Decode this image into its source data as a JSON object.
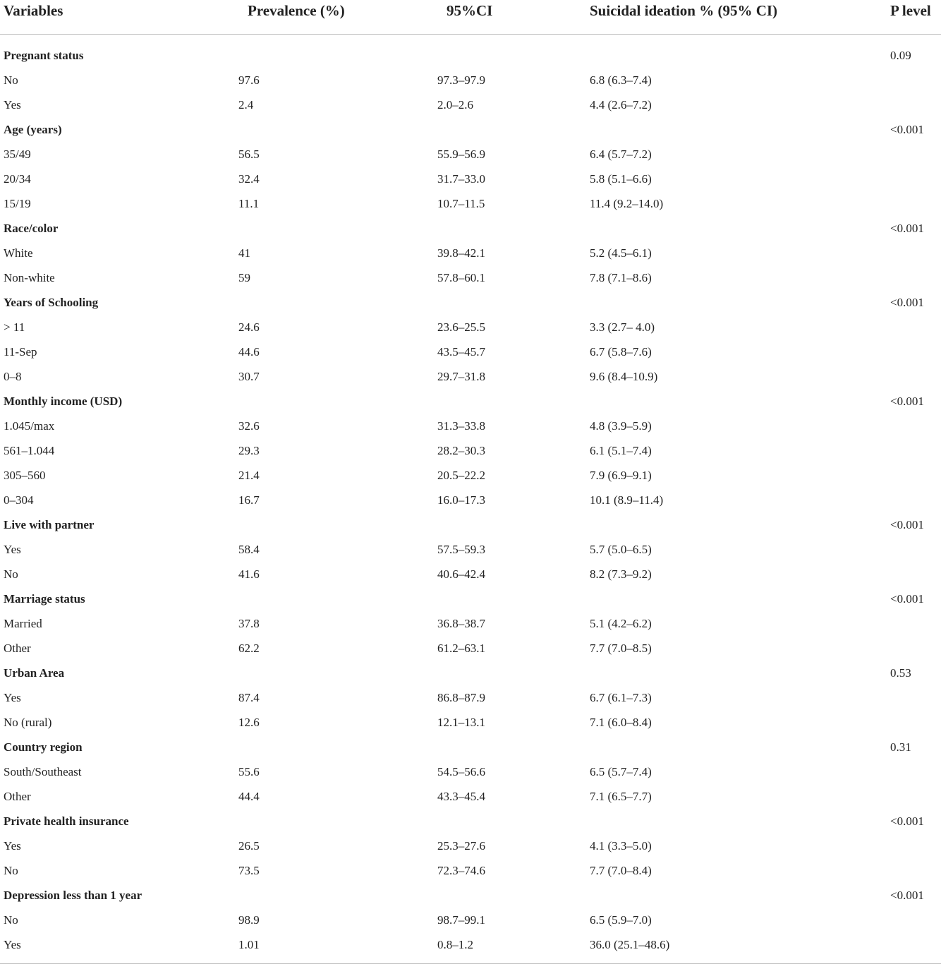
{
  "headers": [
    "Variables",
    "Prevalence (%)",
    "95%CI",
    "Suicidal ideation % (95% CI)",
    "P level"
  ],
  "rows": [
    {
      "type": "group",
      "cells": [
        "Pregnant status",
        "",
        "",
        "",
        "0.09"
      ]
    },
    {
      "type": "item",
      "cells": [
        "No",
        "97.6",
        "97.3–97.9",
        "6.8 (6.3–7.4)",
        ""
      ]
    },
    {
      "type": "item",
      "cells": [
        "Yes",
        "2.4",
        "2.0–2.6",
        "4.4 (2.6–7.2)",
        ""
      ]
    },
    {
      "type": "group",
      "cells": [
        "Age (years)",
        "",
        "",
        "",
        "<0.001"
      ]
    },
    {
      "type": "item",
      "cells": [
        "35/49",
        "56.5",
        "55.9–56.9",
        "6.4 (5.7–7.2)",
        ""
      ]
    },
    {
      "type": "item",
      "cells": [
        "20/34",
        "32.4",
        "31.7–33.0",
        "5.8 (5.1–6.6)",
        ""
      ]
    },
    {
      "type": "item",
      "cells": [
        "15/19",
        "11.1",
        "10.7–11.5",
        "11.4 (9.2–14.0)",
        ""
      ]
    },
    {
      "type": "group",
      "cells": [
        "Race/color",
        "",
        "",
        "",
        "<0.001"
      ]
    },
    {
      "type": "item",
      "cells": [
        "White",
        "41",
        "39.8–42.1",
        "5.2 (4.5–6.1)",
        ""
      ]
    },
    {
      "type": "item",
      "cells": [
        "Non-white",
        "59",
        "57.8–60.1",
        "7.8 (7.1–8.6)",
        ""
      ]
    },
    {
      "type": "group",
      "cells": [
        "Years of Schooling",
        "",
        "",
        "",
        "<0.001"
      ]
    },
    {
      "type": "item",
      "cells": [
        "> 11",
        "24.6",
        "23.6–25.5",
        "3.3 (2.7– 4.0)",
        ""
      ]
    },
    {
      "type": "item",
      "cells": [
        "11-Sep",
        "44.6",
        "43.5–45.7",
        "6.7 (5.8–7.6)",
        ""
      ]
    },
    {
      "type": "item",
      "cells": [
        "0–8",
        "30.7",
        "29.7–31.8",
        "9.6 (8.4–10.9)",
        ""
      ]
    },
    {
      "type": "group",
      "cells": [
        "Monthly income (USD)",
        "",
        "",
        "",
        "<0.001"
      ]
    },
    {
      "type": "item",
      "cells": [
        "1.045/max",
        "32.6",
        "31.3–33.8",
        "4.8 (3.9–5.9)",
        ""
      ]
    },
    {
      "type": "item",
      "cells": [
        "561–1.044",
        "29.3",
        "28.2–30.3",
        "6.1 (5.1–7.4)",
        ""
      ]
    },
    {
      "type": "item",
      "cells": [
        "305–560",
        "21.4",
        "20.5–22.2",
        "7.9 (6.9–9.1)",
        ""
      ]
    },
    {
      "type": "item",
      "cells": [
        "0–304",
        "16.7",
        "16.0–17.3",
        "10.1 (8.9–11.4)",
        ""
      ]
    },
    {
      "type": "group",
      "cells": [
        "Live with partner",
        "",
        "",
        "",
        "<0.001"
      ]
    },
    {
      "type": "item",
      "cells": [
        "Yes",
        "58.4",
        "57.5–59.3",
        "5.7 (5.0–6.5)",
        ""
      ]
    },
    {
      "type": "item",
      "cells": [
        "No",
        "41.6",
        "40.6–42.4",
        "8.2 (7.3–9.2)",
        ""
      ]
    },
    {
      "type": "group",
      "cells": [
        "Marriage status",
        "",
        "",
        "",
        "<0.001"
      ]
    },
    {
      "type": "item",
      "cells": [
        "Married",
        "37.8",
        "36.8–38.7",
        "5.1 (4.2–6.2)",
        ""
      ]
    },
    {
      "type": "item",
      "cells": [
        "Other",
        "62.2",
        "61.2–63.1",
        "7.7 (7.0–8.5)",
        ""
      ]
    },
    {
      "type": "group",
      "cells": [
        "Urban Area",
        "",
        "",
        "",
        "0.53"
      ]
    },
    {
      "type": "item",
      "cells": [
        "Yes",
        "87.4",
        "86.8–87.9",
        "6.7 (6.1–7.3)",
        ""
      ]
    },
    {
      "type": "item",
      "cells": [
        "No (rural)",
        "12.6",
        "12.1–13.1",
        "7.1 (6.0–8.4)",
        ""
      ]
    },
    {
      "type": "group",
      "cells": [
        "Country region",
        "",
        "",
        "",
        "0.31"
      ]
    },
    {
      "type": "item",
      "cells": [
        "South/Southeast",
        "55.6",
        "54.5–56.6",
        "6.5 (5.7–7.4)",
        ""
      ]
    },
    {
      "type": "item",
      "cells": [
        "Other",
        "44.4",
        "43.3–45.4",
        "7.1 (6.5–7.7)",
        ""
      ]
    },
    {
      "type": "group",
      "cells": [
        "Private health insurance",
        "",
        "",
        "",
        "<0.001"
      ]
    },
    {
      "type": "item",
      "cells": [
        "Yes",
        "26.5",
        "25.3–27.6",
        "4.1 (3.3–5.0)",
        ""
      ]
    },
    {
      "type": "item",
      "cells": [
        "No",
        "73.5",
        "72.3–74.6",
        "7.7 (7.0–8.4)",
        ""
      ]
    },
    {
      "type": "group",
      "cells": [
        "Depression less than 1 year",
        "",
        "",
        "",
        "<0.001"
      ]
    },
    {
      "type": "item",
      "cells": [
        "No",
        "98.9",
        "98.7–99.1",
        "6.5 (5.9–7.0)",
        ""
      ]
    },
    {
      "type": "item",
      "cells": [
        "Yes",
        "1.01",
        "0.8–1.2",
        "36.0 (25.1–48.6)",
        ""
      ]
    }
  ]
}
